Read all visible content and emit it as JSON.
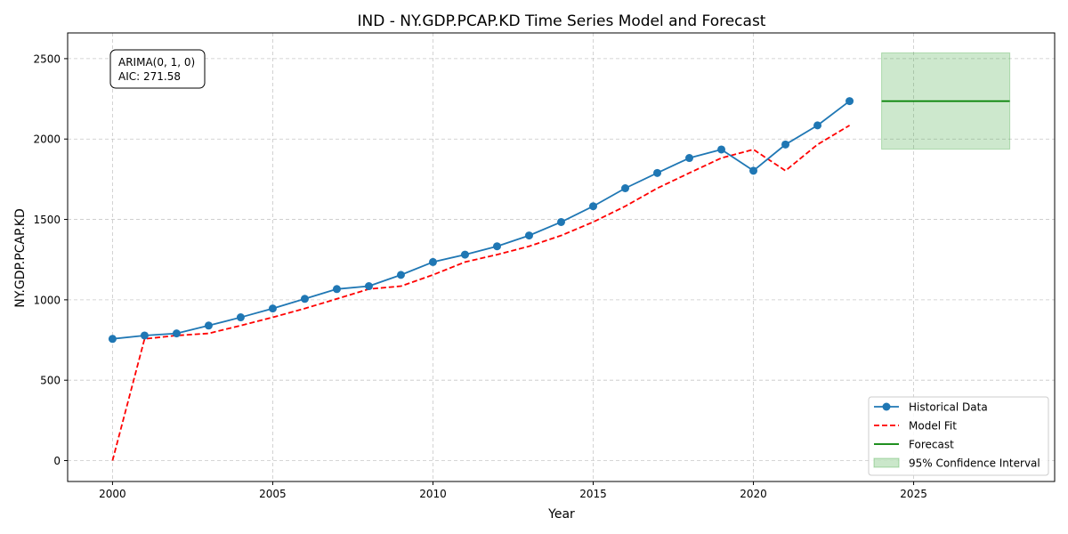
{
  "chart_data": {
    "type": "line",
    "title": "IND - NY.GDP.PCAP.KD Time Series Model and Forecast",
    "xlabel": "Year",
    "ylabel": "NY.GDP.PCAP.KD",
    "xlim": [
      1998.6,
      2029.4
    ],
    "ylim": [
      -130,
      2660
    ],
    "x_ticks": [
      2000,
      2005,
      2010,
      2015,
      2020,
      2025
    ],
    "y_ticks": [
      0,
      500,
      1000,
      1500,
      2000,
      2500
    ],
    "grid": true,
    "legend_position": "lower-right",
    "annotation": [
      "ARIMA(0, 1, 0)",
      "AIC: 271.58"
    ],
    "series": [
      {
        "name": "Historical Data",
        "style": "line-marker",
        "color": "#1f77b4",
        "x": [
          2000,
          2001,
          2002,
          2003,
          2004,
          2005,
          2006,
          2007,
          2008,
          2009,
          2010,
          2011,
          2012,
          2013,
          2014,
          2015,
          2016,
          2017,
          2018,
          2019,
          2020,
          2021,
          2022,
          2023
        ],
        "values": [
          757,
          778,
          791,
          840,
          891,
          946,
          1006,
          1067,
          1085,
          1155,
          1235,
          1281,
          1333,
          1400,
          1484,
          1582,
          1694,
          1789,
          1882,
          1935,
          1803,
          1966,
          2085,
          2236
        ]
      },
      {
        "name": "Model Fit",
        "style": "dashed",
        "color": "#ff0000",
        "x": [
          2000,
          2001,
          2002,
          2003,
          2004,
          2005,
          2006,
          2007,
          2008,
          2009,
          2010,
          2011,
          2012,
          2013,
          2014,
          2015,
          2016,
          2017,
          2018,
          2019,
          2020,
          2021,
          2022,
          2023
        ],
        "values": [
          0,
          757,
          778,
          791,
          840,
          891,
          946,
          1006,
          1067,
          1085,
          1155,
          1235,
          1281,
          1333,
          1400,
          1484,
          1582,
          1694,
          1789,
          1882,
          1935,
          1803,
          1966,
          2085
        ]
      },
      {
        "name": "Forecast",
        "style": "line",
        "color": "#008000",
        "x": [
          2024,
          2025,
          2026,
          2027,
          2028
        ],
        "values": [
          2236,
          2236,
          2236,
          2236,
          2236
        ]
      }
    ],
    "confidence_interval": {
      "name": "95% Confidence Interval",
      "color": "#2ca02c",
      "x": [
        2024,
        2028
      ],
      "lower": 1937,
      "upper": 2536
    }
  }
}
